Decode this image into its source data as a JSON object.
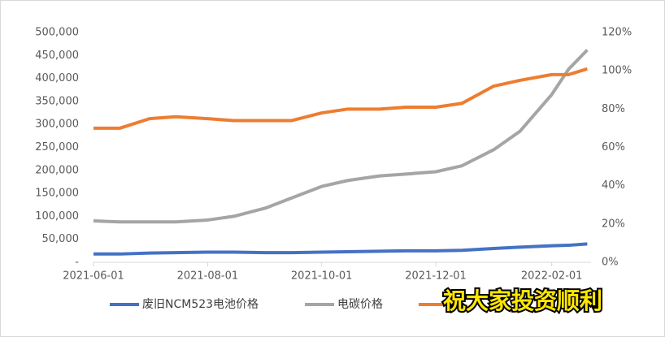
{
  "chart_data": {
    "type": "line",
    "x": [
      "2021-06-01",
      "2021-06-15",
      "2021-07-01",
      "2021-07-15",
      "2021-08-01",
      "2021-08-15",
      "2021-09-01",
      "2021-09-15",
      "2021-10-01",
      "2021-10-15",
      "2021-11-01",
      "2021-11-15",
      "2021-12-01",
      "2021-12-15",
      "2022-01-01",
      "2022-01-15",
      "2022-02-01",
      "2022-02-10",
      "2022-02-20"
    ],
    "xlim": [
      "2021-06-01",
      "2022-02-22"
    ],
    "xticks": [
      "2021-06-01",
      "2021-08-01",
      "2021-10-01",
      "2021-12-01",
      "2022-02-01"
    ],
    "ylim": [
      0,
      500000
    ],
    "yticks": [
      {
        "value": 0,
        "label": "-"
      },
      {
        "value": 50000,
        "label": "50,000"
      },
      {
        "value": 100000,
        "label": "100,000"
      },
      {
        "value": 150000,
        "label": "150,000"
      },
      {
        "value": 200000,
        "label": "200,000"
      },
      {
        "value": 250000,
        "label": "250,000"
      },
      {
        "value": 300000,
        "label": "300,000"
      },
      {
        "value": 350000,
        "label": "350,000"
      },
      {
        "value": 400000,
        "label": "400,000"
      },
      {
        "value": 450000,
        "label": "450,000"
      },
      {
        "value": 500000,
        "label": "500,000"
      }
    ],
    "y2lim": [
      0,
      120
    ],
    "y2ticks": [
      {
        "value": 0,
        "label": "0%"
      },
      {
        "value": 20,
        "label": "20%"
      },
      {
        "value": 40,
        "label": "40%"
      },
      {
        "value": 60,
        "label": "60%"
      },
      {
        "value": 80,
        "label": "80%"
      },
      {
        "value": 100,
        "label": "100%"
      },
      {
        "value": 120,
        "label": "120%"
      }
    ],
    "series": [
      {
        "name": "废旧NCM523电池价格",
        "color": "#4472c4",
        "values": [
          18000,
          18000,
          20000,
          21000,
          22000,
          22000,
          21000,
          21000,
          22000,
          23000,
          24000,
          25000,
          25000,
          26000,
          30000,
          33000,
          36000,
          37000,
          40000
        ]
      },
      {
        "name": "电碳价格",
        "color": "#a5a5a5",
        "values": [
          90000,
          88000,
          88000,
          88000,
          92000,
          100000,
          118000,
          140000,
          165000,
          178000,
          188000,
          192000,
          197000,
          210000,
          245000,
          285000,
          365000,
          420000,
          462000
        ]
      },
      {
        "color": "#ed7d31",
        "axis": "y2",
        "values": [
          70,
          70,
          75,
          76,
          75,
          74,
          74,
          74,
          78,
          80,
          80,
          81,
          81,
          83,
          92,
          95,
          98,
          98,
          101
        ]
      }
    ],
    "annotation": "祝大家投资顺利"
  }
}
